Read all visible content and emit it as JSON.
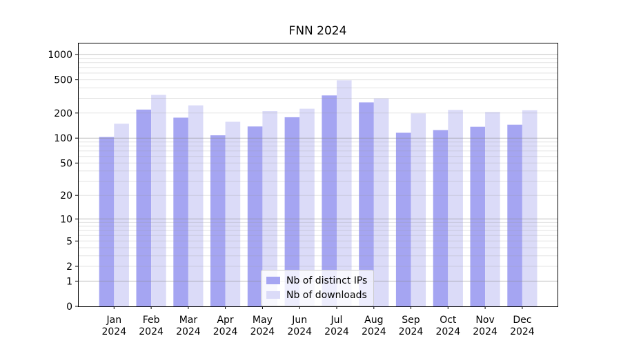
{
  "chart_data": {
    "type": "bar",
    "title": "FNN 2024",
    "categories": [
      "Jan",
      "Feb",
      "Mar",
      "Apr",
      "May",
      "Jun",
      "Jul",
      "Aug",
      "Sep",
      "Oct",
      "Nov",
      "Dec"
    ],
    "x_sublabel": "2024",
    "series": [
      {
        "name": "Nb of distinct IPs",
        "color": "#a5a5f2",
        "values": [
          103,
          220,
          176,
          108,
          138,
          178,
          325,
          268,
          116,
          125,
          137,
          145
        ]
      },
      {
        "name": "Nb of downloads",
        "color": "#dbdbf8",
        "values": [
          149,
          330,
          247,
          157,
          211,
          225,
          492,
          299,
          198,
          218,
          206,
          216
        ]
      }
    ],
    "xlabel": "",
    "ylabel": "",
    "yscale": "log1p",
    "yticks": [
      0,
      1,
      2,
      5,
      10,
      20,
      50,
      100,
      200,
      500,
      1000
    ],
    "ylim": [
      0,
      1380
    ],
    "grid": true,
    "legend_position": "lower center",
    "colors": {
      "axis": "#000000",
      "tick_label": "#000000",
      "grid_major": "#8a8a8a",
      "grid_minor": "#999999",
      "background": "#ffffff"
    }
  }
}
